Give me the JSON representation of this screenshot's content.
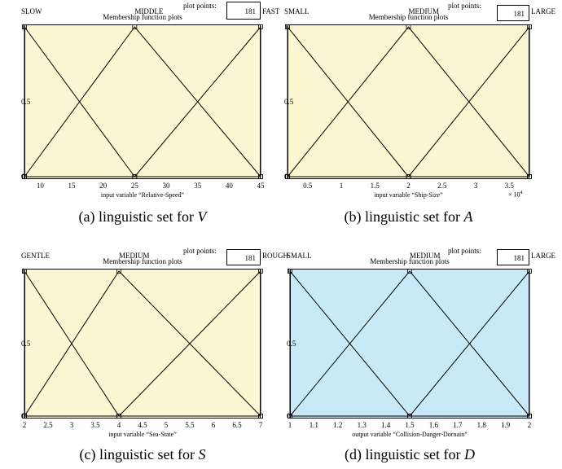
{
  "plot_points_label": "plot points:",
  "plot_title": "Membership function plots",
  "chart_data": [
    {
      "type": "line",
      "id": "a",
      "plot_points": "181",
      "xlabel": "input variable “Relative-Speed”",
      "xlim": [
        7.5,
        45
      ],
      "ylim": [
        0,
        1
      ],
      "xticks": [
        "10",
        "15",
        "20",
        "25",
        "30",
        "35",
        "40",
        "45"
      ],
      "xtick_values": [
        10,
        15,
        20,
        25,
        30,
        35,
        40,
        45
      ],
      "yticks": [
        "0",
        "0.5",
        "1"
      ],
      "exponent": "",
      "bg": "#fcf6d2",
      "series": [
        {
          "name": "SLOW",
          "x": [
            7.5,
            7.5,
            25
          ],
          "y": [
            0,
            1,
            0
          ]
        },
        {
          "name": "MIDDLE",
          "x": [
            7.5,
            25,
            45
          ],
          "y": [
            0,
            1,
            0
          ]
        },
        {
          "name": "FAST",
          "x": [
            25,
            45,
            45
          ],
          "y": [
            0,
            1,
            0
          ]
        }
      ],
      "caption": "(a) linguistic set for ",
      "caption_var": "V"
    },
    {
      "type": "line",
      "id": "b",
      "plot_points": "181",
      "xlabel": "input variable “Ship-Size”",
      "xlim": [
        2000,
        38000
      ],
      "ylim": [
        0,
        1
      ],
      "xticks": [
        "0.5",
        "1",
        "1.5",
        "2",
        "2.5",
        "3",
        "3.5"
      ],
      "xtick_values": [
        5000,
        10000,
        15000,
        20000,
        25000,
        30000,
        35000
      ],
      "yticks": [
        "0",
        "0.5",
        "1"
      ],
      "exponent": "× 10",
      "exponent_power": "4",
      "bg": "#fcf6d2",
      "series": [
        {
          "name": "SMALL",
          "x": [
            2000,
            2000,
            20000
          ],
          "y": [
            0,
            1,
            0
          ]
        },
        {
          "name": "MEDIUM",
          "x": [
            2000,
            20000,
            38000
          ],
          "y": [
            0,
            1,
            0
          ]
        },
        {
          "name": "LARGE",
          "x": [
            20000,
            38000,
            38000
          ],
          "y": [
            0,
            1,
            0
          ]
        }
      ],
      "caption": "(b) linguistic set for ",
      "caption_var": "A"
    },
    {
      "type": "line",
      "id": "c",
      "plot_points": "181",
      "xlabel": "input variable “Sea-State”",
      "xlim": [
        2,
        7
      ],
      "ylim": [
        0,
        1
      ],
      "xticks": [
        "2",
        "2.5",
        "3",
        "3.5",
        "4",
        "4.5",
        "5",
        "5.5",
        "6",
        "6.5",
        "7"
      ],
      "xtick_values": [
        2,
        2.5,
        3,
        3.5,
        4,
        4.5,
        5,
        5.5,
        6,
        6.5,
        7
      ],
      "yticks": [
        "0",
        "0.5",
        "1"
      ],
      "exponent": "",
      "bg": "#fcf6d2",
      "series": [
        {
          "name": "GENTLE",
          "x": [
            2,
            2,
            4
          ],
          "y": [
            0,
            1,
            0
          ]
        },
        {
          "name": "MEDIUM",
          "x": [
            2,
            4,
            7
          ],
          "y": [
            0,
            1,
            0
          ]
        },
        {
          "name": "ROUGH",
          "x": [
            4,
            7,
            7
          ],
          "y": [
            0,
            1,
            0
          ]
        }
      ],
      "caption": "(c) linguistic set for ",
      "caption_var": "S"
    },
    {
      "type": "line",
      "id": "d",
      "plot_points": "181",
      "xlabel": "output variable “Collision-Danger-Dornain”",
      "xlim": [
        1,
        2
      ],
      "ylim": [
        0,
        1
      ],
      "xticks": [
        "1",
        "1.1",
        "1.2",
        "1.3",
        "1.4",
        "1.5",
        "1.6",
        "1.7",
        "1.8",
        "1.9",
        "2"
      ],
      "xtick_values": [
        1,
        1.1,
        1.2,
        1.3,
        1.4,
        1.5,
        1.6,
        1.7,
        1.8,
        1.9,
        2
      ],
      "yticks": [
        "0",
        "0.5",
        "1"
      ],
      "exponent": "",
      "bg": "#c8eaf8",
      "series": [
        {
          "name": "SMALL",
          "x": [
            1,
            1,
            1.5
          ],
          "y": [
            0,
            1,
            0
          ]
        },
        {
          "name": "MEDIUM",
          "x": [
            1,
            1.5,
            2
          ],
          "y": [
            0,
            1,
            0
          ]
        },
        {
          "name": "LARGE",
          "x": [
            1.5,
            2,
            2
          ],
          "y": [
            0,
            1,
            0
          ]
        }
      ],
      "caption": "(d) linguistic set for ",
      "caption_var": "D"
    }
  ]
}
